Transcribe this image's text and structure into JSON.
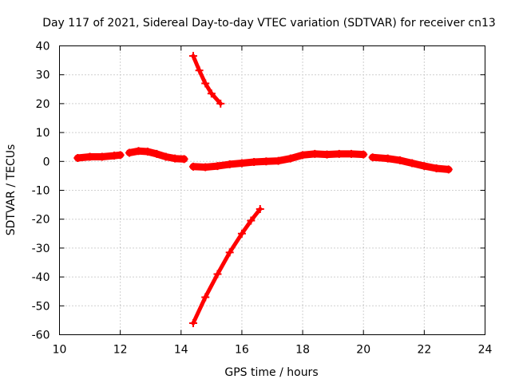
{
  "chart_data": {
    "type": "scatter",
    "title": "Day 117 of 2021, Sidereal Day-to-day VTEC variation (SDTVAR) for receiver cn13",
    "xlabel": "GPS time / hours",
    "ylabel": "SDTVAR / TECUs",
    "xlim": [
      10,
      24
    ],
    "ylim": [
      -60,
      40
    ],
    "xticks": [
      10,
      12,
      14,
      16,
      18,
      20,
      22,
      24
    ],
    "yticks": [
      -60,
      -50,
      -40,
      -30,
      -20,
      -10,
      0,
      10,
      20,
      30,
      40
    ],
    "grid": true,
    "color": "#ff0000",
    "series": [
      {
        "x": [
          10.6,
          11.0,
          11.4,
          11.8,
          12.0
        ],
        "y": [
          1.2,
          1.6,
          1.6,
          2.0,
          2.2
        ]
      },
      {
        "x": [
          12.3,
          12.6,
          12.9,
          13.2,
          13.5,
          13.8,
          14.1
        ],
        "y": [
          3.0,
          3.6,
          3.4,
          2.6,
          1.6,
          1.0,
          0.8
        ]
      },
      {
        "x": [
          14.4,
          14.8,
          15.2,
          15.6,
          16.0,
          16.4,
          16.8,
          17.2,
          17.6,
          18.0,
          18.4,
          18.8,
          19.2,
          19.6,
          20.0
        ],
        "y": [
          -1.8,
          -2.0,
          -1.6,
          -1.0,
          -0.6,
          -0.2,
          0.0,
          0.2,
          1.0,
          2.2,
          2.6,
          2.4,
          2.6,
          2.6,
          2.4
        ]
      },
      {
        "x": [
          20.3,
          20.8,
          21.2,
          21.6,
          22.0,
          22.4,
          22.8
        ],
        "y": [
          1.4,
          1.0,
          0.4,
          -0.6,
          -1.6,
          -2.4,
          -2.8
        ]
      },
      {
        "x": [
          14.4,
          14.6,
          14.8,
          15.0,
          15.3
        ],
        "y": [
          36.5,
          31.5,
          27.0,
          23.5,
          20.0
        ]
      },
      {
        "x": [
          14.4,
          14.8,
          15.2,
          15.6,
          16.0,
          16.3,
          16.6
        ],
        "y": [
          -56.0,
          -47.0,
          -39.0,
          -31.5,
          -25.0,
          -20.5,
          -16.5
        ]
      }
    ]
  }
}
